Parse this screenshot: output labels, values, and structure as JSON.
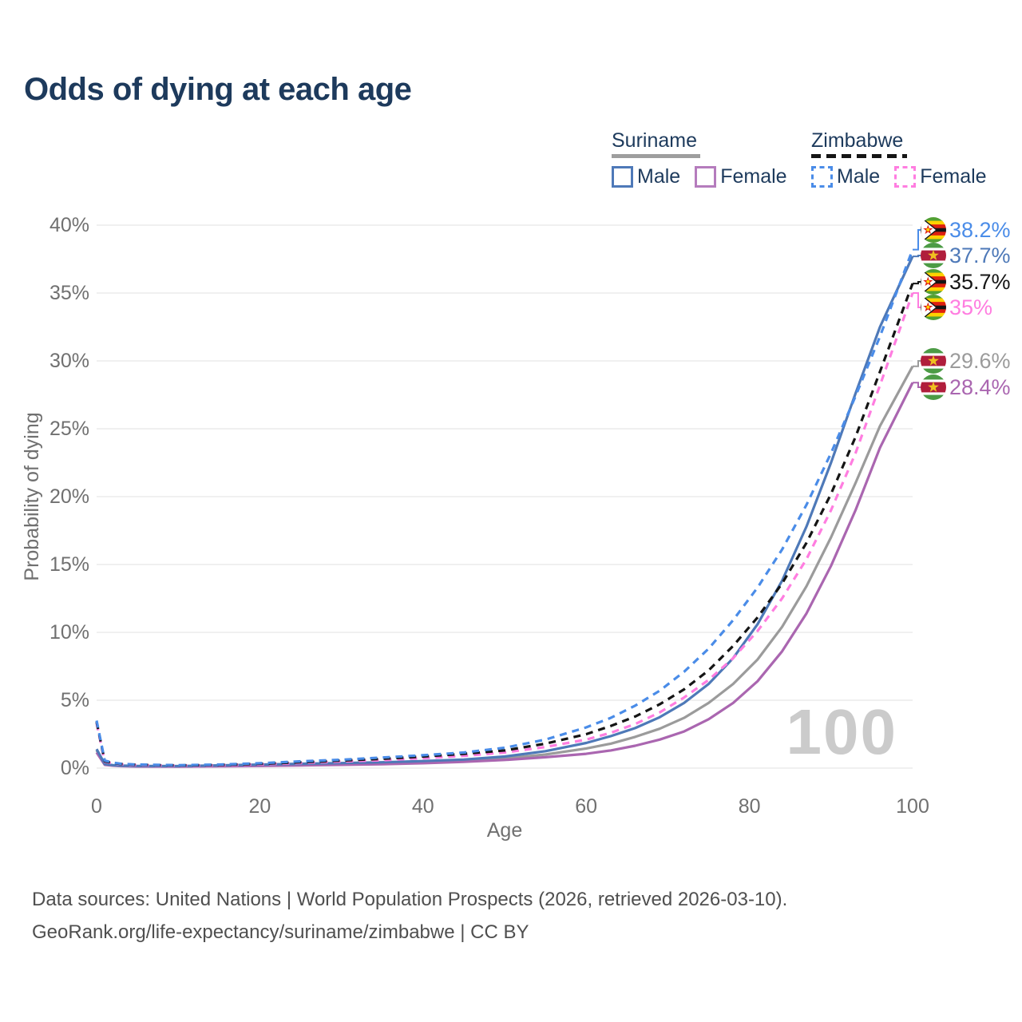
{
  "title": "Odds of dying at each age",
  "legend": {
    "groups": [
      {
        "name": "Suriname",
        "line_style": "solid",
        "underline_color": "#9e9e9e",
        "items": [
          {
            "label": "Male",
            "color": "#4e79b8",
            "dashed": false
          },
          {
            "label": "Female",
            "color": "#b57cbd",
            "dashed": false
          }
        ]
      },
      {
        "name": "Zimbabwe",
        "line_style": "dashed",
        "underline_color": "#151515",
        "items": [
          {
            "label": "Male",
            "color": "#4a8ce8",
            "dashed": true
          },
          {
            "label": "Female",
            "color": "#ff7de0",
            "dashed": true
          }
        ]
      }
    ]
  },
  "watermark": "100",
  "footer": {
    "line1": "Data sources: United Nations | World Population Prospects (2026, retrieved 2026-03-10).",
    "line2": "GeoRank.org/life-expectancy/suriname/zimbabwe | CC BY"
  },
  "chart_data": {
    "type": "line",
    "title": "Odds of dying at each age",
    "xlabel": "Age",
    "ylabel": "Probability of dying",
    "xlim": [
      0,
      100
    ],
    "ylim": [
      0,
      40
    ],
    "x_ticks": [
      0,
      20,
      40,
      60,
      80,
      100
    ],
    "y_ticks": [
      "0%",
      "5%",
      "10%",
      "15%",
      "20%",
      "25%",
      "30%",
      "35%",
      "40%"
    ],
    "grid": true,
    "legend_position": "top-right",
    "ages": [
      0,
      1,
      2,
      3,
      5,
      10,
      15,
      20,
      25,
      30,
      35,
      40,
      45,
      50,
      55,
      60,
      63,
      66,
      69,
      72,
      75,
      78,
      81,
      84,
      87,
      90,
      93,
      96,
      100
    ],
    "series": [
      {
        "id": "zim_male",
        "name": "Zimbabwe Male",
        "country": "Zimbabwe",
        "sex": "male",
        "color": "#4a8ce8",
        "line_style": "dashed",
        "flag": "zimbabwe",
        "end_label": "38.2%",
        "values": [
          3.5,
          0.55,
          0.4,
          0.32,
          0.26,
          0.22,
          0.26,
          0.36,
          0.5,
          0.62,
          0.78,
          0.95,
          1.15,
          1.5,
          2.1,
          3.0,
          3.7,
          4.6,
          5.7,
          7.1,
          8.8,
          10.9,
          13.3,
          16.1,
          19.4,
          23.2,
          27.4,
          31.8,
          38.2
        ]
      },
      {
        "id": "sur_male",
        "name": "Suriname Male",
        "country": "Suriname",
        "sex": "male",
        "color": "#4e79b8",
        "line_style": "solid",
        "flag": "suriname",
        "end_label": "37.7%",
        "values": [
          1.4,
          0.3,
          0.22,
          0.18,
          0.16,
          0.15,
          0.2,
          0.26,
          0.32,
          0.37,
          0.43,
          0.52,
          0.63,
          0.85,
          1.25,
          1.85,
          2.35,
          2.95,
          3.75,
          4.8,
          6.2,
          8.1,
          10.6,
          13.8,
          17.8,
          22.5,
          27.6,
          32.5,
          37.7
        ]
      },
      {
        "id": "zim_all",
        "name": "Zimbabwe (both sexes)",
        "country": "Zimbabwe",
        "sex": "all",
        "color": "#151515",
        "line_style": "dashed",
        "flag": "zimbabwe",
        "end_label": "35.7%",
        "values": [
          3.4,
          0.5,
          0.37,
          0.3,
          0.24,
          0.2,
          0.23,
          0.31,
          0.43,
          0.55,
          0.68,
          0.85,
          1.05,
          1.3,
          1.8,
          2.5,
          3.1,
          3.8,
          4.7,
          5.8,
          7.2,
          9.0,
          11.1,
          13.6,
          16.6,
          20.2,
          24.4,
          29.2,
          35.7
        ]
      },
      {
        "id": "zim_female",
        "name": "Zimbabwe Female",
        "country": "Zimbabwe",
        "sex": "female",
        "color": "#ff7de0",
        "line_style": "dashed",
        "flag": "zimbabwe",
        "end_label": "35%",
        "values": [
          3.3,
          0.46,
          0.34,
          0.28,
          0.22,
          0.18,
          0.2,
          0.27,
          0.37,
          0.48,
          0.58,
          0.73,
          0.9,
          1.15,
          1.55,
          2.1,
          2.6,
          3.25,
          4.1,
          5.2,
          6.5,
          8.1,
          10.1,
          12.5,
          15.4,
          19.0,
          23.2,
          28.2,
          35.0
        ]
      },
      {
        "id": "sur_all",
        "name": "Suriname (both sexes)",
        "country": "Suriname",
        "sex": "all",
        "color": "#9b9b9b",
        "line_style": "solid",
        "flag": "suriname",
        "end_label": "29.6%",
        "values": [
          1.3,
          0.27,
          0.2,
          0.17,
          0.14,
          0.13,
          0.17,
          0.22,
          0.27,
          0.31,
          0.36,
          0.44,
          0.56,
          0.72,
          1.0,
          1.45,
          1.8,
          2.3,
          2.9,
          3.7,
          4.8,
          6.2,
          8.0,
          10.4,
          13.4,
          17.0,
          21.0,
          25.2,
          29.6
        ]
      },
      {
        "id": "sur_female",
        "name": "Suriname Female",
        "country": "Suriname",
        "sex": "female",
        "color": "#aa66b0",
        "line_style": "solid",
        "flag": "suriname",
        "end_label": "28.4%",
        "values": [
          1.15,
          0.24,
          0.18,
          0.15,
          0.12,
          0.11,
          0.13,
          0.16,
          0.2,
          0.24,
          0.29,
          0.36,
          0.46,
          0.6,
          0.8,
          1.05,
          1.3,
          1.65,
          2.1,
          2.7,
          3.6,
          4.8,
          6.4,
          8.6,
          11.4,
          14.9,
          19.0,
          23.6,
          28.4
        ]
      }
    ]
  }
}
